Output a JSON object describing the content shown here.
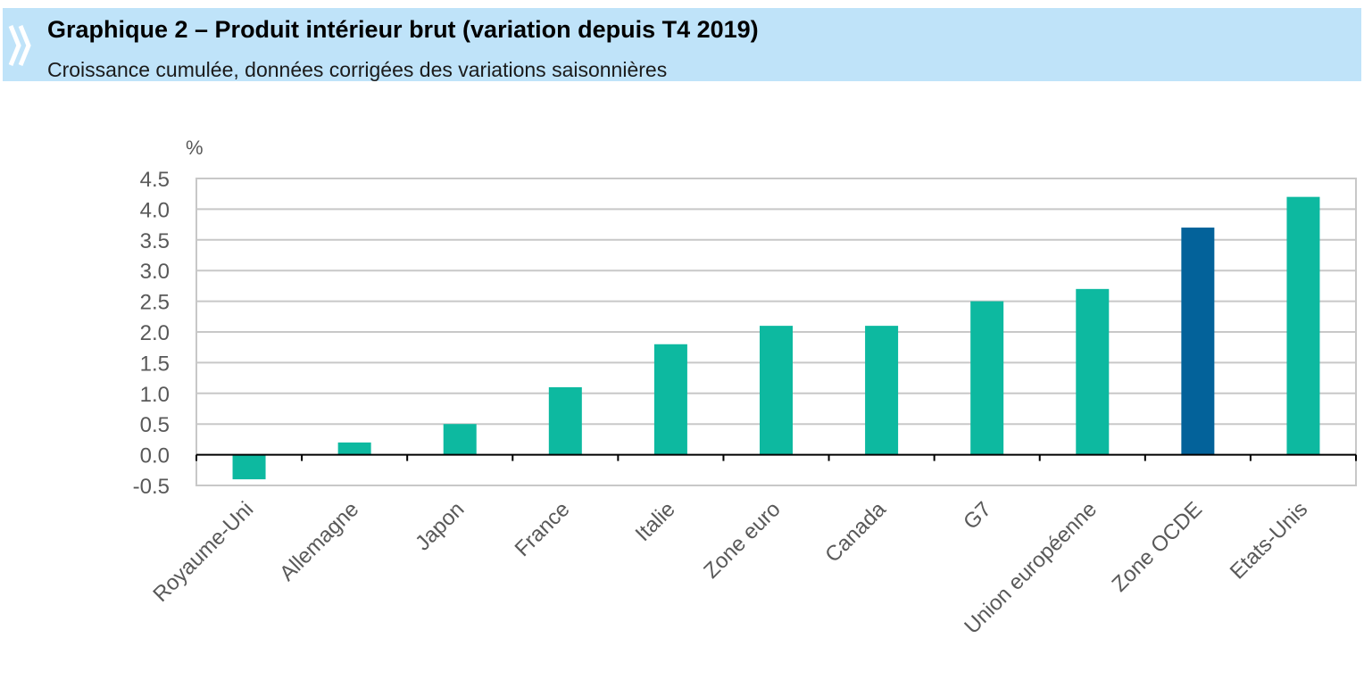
{
  "header": {
    "title": "Graphique 2 – Produit intérieur brut (variation depuis T4 2019)",
    "subtitle": "Croissance cumulée, données corrigées des variations saisonnières",
    "icon": "double-chevron-right-icon"
  },
  "chart_data": {
    "type": "bar",
    "ylabel": "%",
    "ylim": [
      -0.5,
      4.5
    ],
    "ytick_step": 0.5,
    "grid": true,
    "categories": [
      "Royaume-Uni",
      "Allemagne",
      "Japon",
      "France",
      "Italie",
      "Zone euro",
      "Canada",
      "G7",
      "Union européenne",
      "Zone OCDE",
      "Etats-Unis"
    ],
    "values": [
      -0.4,
      0.2,
      0.5,
      1.1,
      1.8,
      2.1,
      2.1,
      2.5,
      2.7,
      3.7,
      4.2
    ],
    "colors": {
      "default": "#0db9a0",
      "highlight": "#03629a",
      "highlight_category": "Zone OCDE",
      "grid": "#c8c8c8",
      "axis": "#000000"
    }
  }
}
